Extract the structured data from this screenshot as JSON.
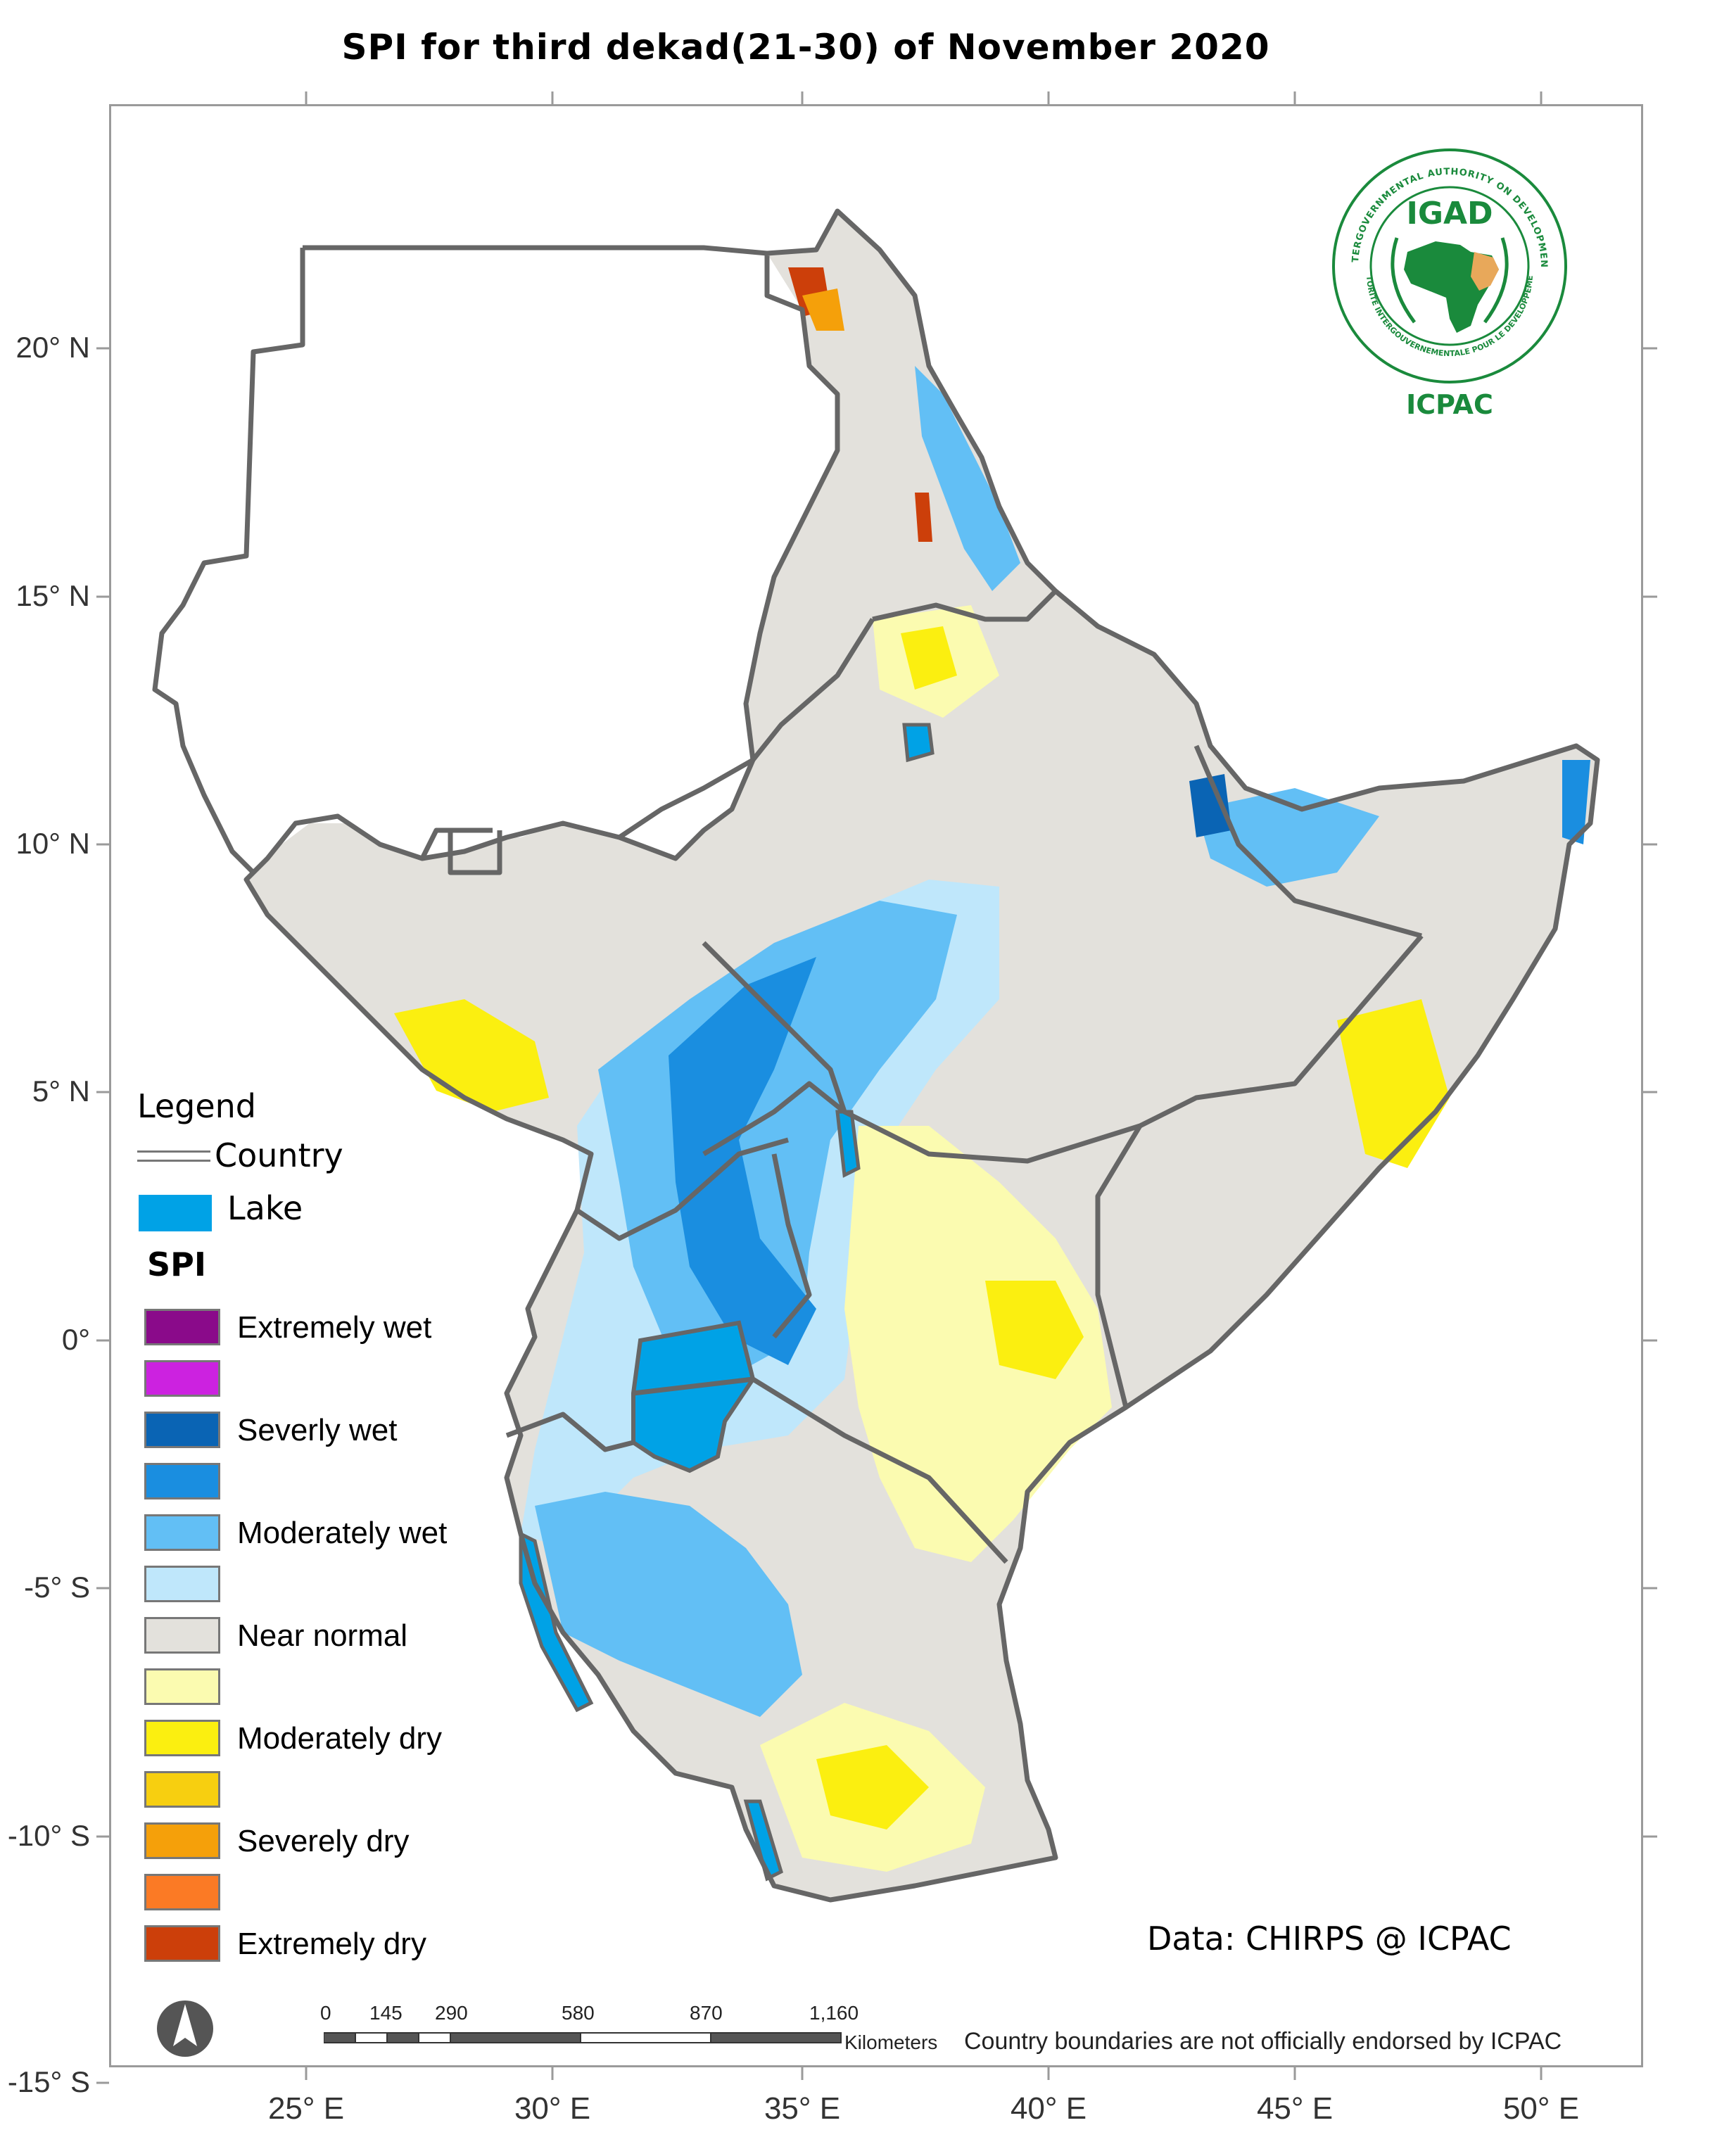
{
  "title": "SPI  for   third dekad(21-30) of November 2020",
  "lat_labels": [
    "20° N",
    "15° N",
    "10° N",
    "5° N",
    "0°",
    "-5° S",
    "-10° S",
    "-15° S"
  ],
  "lon_labels": [
    "25° E",
    "30° E",
    "35° E",
    "40° E",
    "45° E",
    "50° E"
  ],
  "legend": {
    "heading": "Legend",
    "country_label": "Country",
    "lake_label": "Lake",
    "lake_color": "#00a2e6",
    "spi_heading": "SPI",
    "classes": [
      {
        "label": "Extremely wet",
        "color": "#8a0a8a"
      },
      {
        "label": "",
        "color": "#cc22e0"
      },
      {
        "label": "Severly wet",
        "color": "#0a64b4"
      },
      {
        "label": "",
        "color": "#1a8ee0"
      },
      {
        "label": "Moderately wet",
        "color": "#62bff5"
      },
      {
        "label": "",
        "color": "#bfe7fb"
      },
      {
        "label": "Near normal",
        "color": "#e3e1dc"
      },
      {
        "label": "",
        "color": "#fbfbb0"
      },
      {
        "label": "Moderately dry",
        "color": "#fbef10"
      },
      {
        "label": "",
        "color": "#f7cf10"
      },
      {
        "label": "Severely dry",
        "color": "#f5a00a"
      },
      {
        "label": "",
        "color": "#fb7a25"
      },
      {
        "label": "Extremely dry",
        "color": "#cc3f0a"
      }
    ]
  },
  "logo": {
    "ring_text_top": "INTERGOVERNMENTAL AUTHORITY ON DEVELOPMENT",
    "ring_text_bottom": "AUTORITE INTERGOUVERNEMENTALE POUR LE DEVELOPPEMENT",
    "acronym": "IGAD",
    "center_label": "ICPAC",
    "brand_color": "#1a8a3c",
    "accent_color": "#e8a85a"
  },
  "data_credit": "Data: CHIRPS @ ICPAC",
  "disclaimer": "Country boundaries are not officially endorsed by ICPAC",
  "scalebar": {
    "ticks": [
      "0",
      "145",
      "290",
      "580",
      "870",
      "1,160"
    ],
    "unit": "Kilometers"
  }
}
